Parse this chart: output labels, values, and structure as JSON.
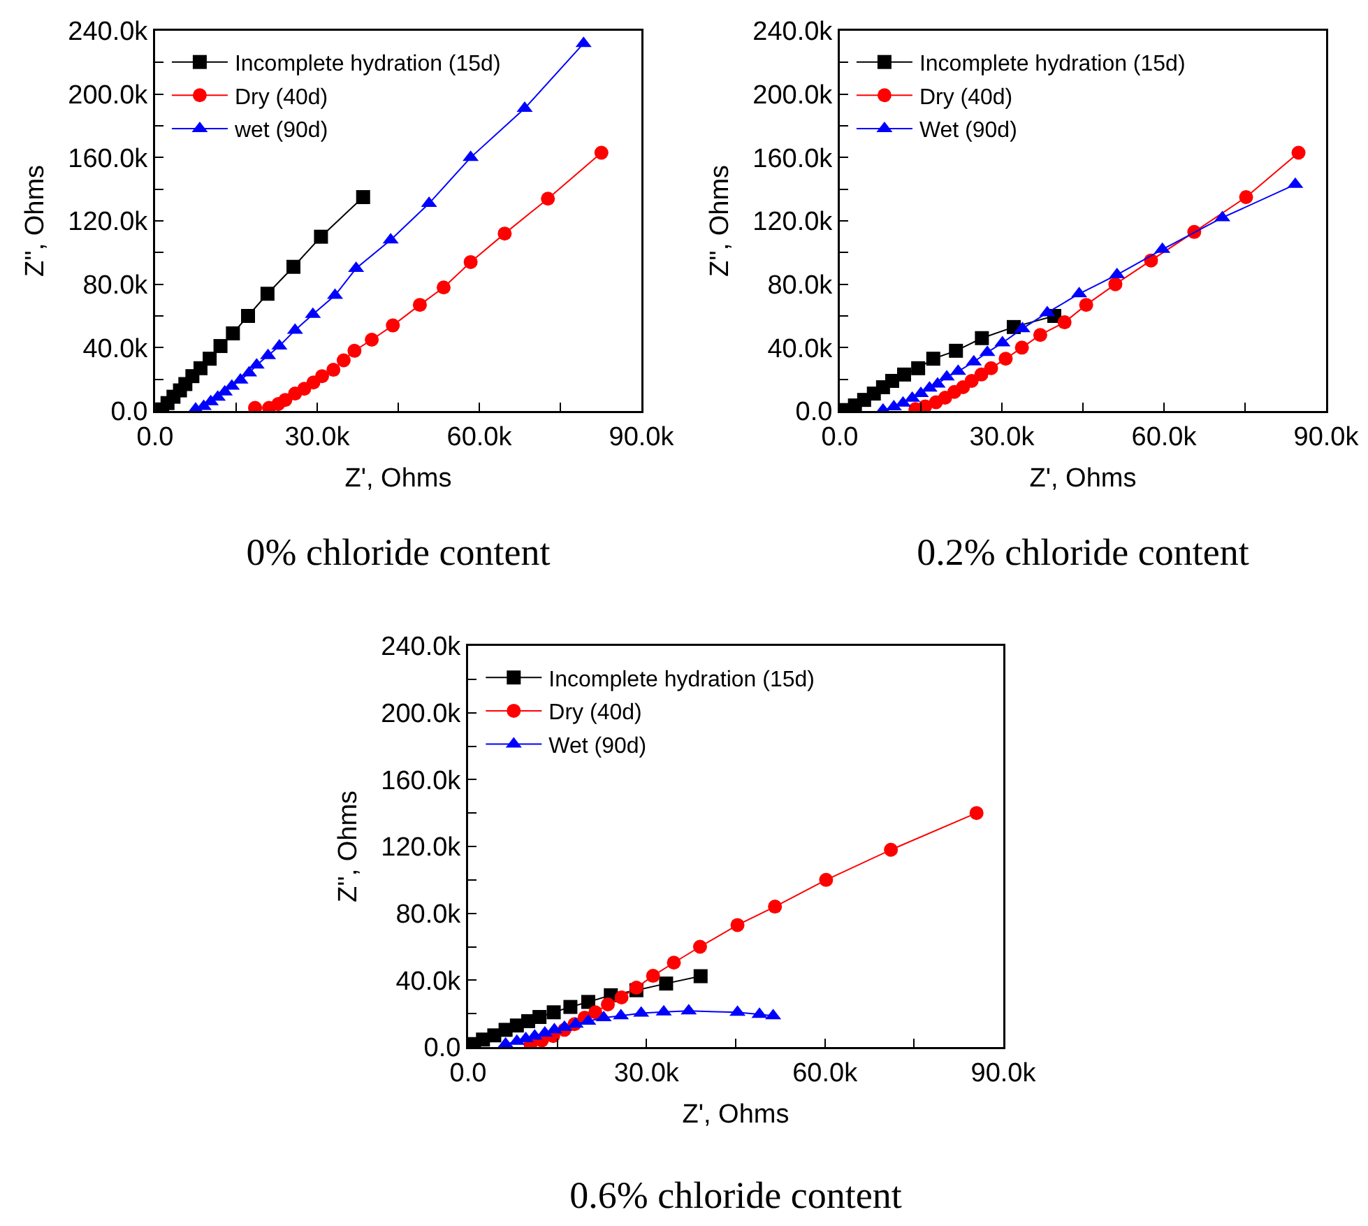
{
  "chart_data": [
    {
      "type": "line",
      "title": "0% chloride content",
      "xlabel": "Z', Ohms",
      "ylabel": "Z'', Ohms",
      "xlim": [
        0,
        90000
      ],
      "ylim": [
        0,
        240000
      ],
      "xticks": [
        {
          "value": 0,
          "label": "0.0"
        },
        {
          "value": 15000,
          "label": null
        },
        {
          "value": 30000,
          "label": "30.0k"
        },
        {
          "value": 45000,
          "label": null
        },
        {
          "value": 60000,
          "label": "60.0k"
        },
        {
          "value": 75000,
          "label": null
        },
        {
          "value": 90000,
          "label": "90.0k"
        }
      ],
      "yticks": [
        {
          "value": 0,
          "label": "0.0"
        },
        {
          "value": 20000,
          "label": null
        },
        {
          "value": 40000,
          "label": "40.0k"
        },
        {
          "value": 60000,
          "label": null
        },
        {
          "value": 80000,
          "label": "80.0k"
        },
        {
          "value": 100000,
          "label": null
        },
        {
          "value": 120000,
          "label": "120.0k"
        },
        {
          "value": 140000,
          "label": null
        },
        {
          "value": 160000,
          "label": "160.0k"
        },
        {
          "value": 180000,
          "label": null
        },
        {
          "value": 200000,
          "label": "200.0k"
        },
        {
          "value": 220000,
          "label": null
        },
        {
          "value": 240000,
          "label": "240.0k"
        }
      ],
      "grid": false,
      "legend": "top left",
      "series": [
        {
          "name": "Incomplete hydration (15d)",
          "color": "#000000",
          "marker": "square",
          "x": [
            1300,
            2300,
            3400,
            4600,
            5600,
            6900,
            8400,
            10100,
            12100,
            14400,
            17200,
            20800,
            25600,
            30700,
            38500
          ],
          "values": [
            1000,
            5000,
            9000,
            13000,
            17000,
            22000,
            27000,
            33000,
            41000,
            49000,
            60000,
            74000,
            91000,
            110000,
            135000
          ]
        },
        {
          "name": "Dry (40d)",
          "color": "#ff0000",
          "marker": "circle",
          "x": [
            18500,
            21100,
            22800,
            24100,
            25900,
            27600,
            29300,
            30900,
            33000,
            34900,
            36900,
            40100,
            44000,
            49000,
            53400,
            58400,
            64700,
            72700,
            82600
          ],
          "values": [
            2000,
            2000,
            4400,
            7000,
            11000,
            14000,
            18000,
            22000,
            26000,
            32000,
            38000,
            45000,
            54000,
            67000,
            78000,
            94000,
            112000,
            134000,
            163000
          ]
        },
        {
          "name": "wet (90d)",
          "color": "#0000ff",
          "marker": "triangle",
          "x": [
            7500,
            9000,
            10300,
            11600,
            12900,
            14200,
            15800,
            17400,
            18800,
            20900,
            23000,
            25900,
            29200,
            33300,
            37200,
            43600,
            50700,
            58400,
            68400,
            79300
          ],
          "values": [
            1200,
            2900,
            5800,
            8700,
            12000,
            15700,
            19500,
            24000,
            29000,
            35000,
            41000,
            51000,
            61000,
            73000,
            90000,
            108000,
            131000,
            160000,
            191000,
            232000
          ]
        }
      ]
    },
    {
      "type": "line",
      "title": "0.2% chloride content",
      "xlabel": "Z', Ohms",
      "ylabel": "Z'', Ohms",
      "xlim": [
        0,
        90000
      ],
      "ylim": [
        0,
        240000
      ],
      "xticks": [
        {
          "value": 0,
          "label": "0.0"
        },
        {
          "value": 15000,
          "label": null
        },
        {
          "value": 30000,
          "label": "30.0k"
        },
        {
          "value": 45000,
          "label": null
        },
        {
          "value": 60000,
          "label": "60.0k"
        },
        {
          "value": 75000,
          "label": null
        },
        {
          "value": 90000,
          "label": "90.0k"
        }
      ],
      "yticks": [
        {
          "value": 0,
          "label": "0.0"
        },
        {
          "value": 20000,
          "label": null
        },
        {
          "value": 40000,
          "label": "40.0k"
        },
        {
          "value": 60000,
          "label": null
        },
        {
          "value": 80000,
          "label": "80.0k"
        },
        {
          "value": 100000,
          "label": null
        },
        {
          "value": 120000,
          "label": "120.0k"
        },
        {
          "value": 140000,
          "label": null
        },
        {
          "value": 160000,
          "label": "160.0k"
        },
        {
          "value": 180000,
          "label": null
        },
        {
          "value": 200000,
          "label": "200.0k"
        },
        {
          "value": 220000,
          "label": null
        },
        {
          "value": 240000,
          "label": "240.0k"
        }
      ],
      "grid": false,
      "legend": "top left",
      "series": [
        {
          "name": "Incomplete hydration (15d)",
          "color": "#000000",
          "marker": "square",
          "x": [
            1100,
            2800,
            4500,
            6300,
            8000,
            9700,
            11900,
            14500,
            17300,
            21500,
            26300,
            32200,
            39700
          ],
          "values": [
            600,
            3500,
            7000,
            11000,
            15000,
            19000,
            23000,
            27000,
            33000,
            38000,
            46000,
            53000,
            60000
          ]
        },
        {
          "name": "Dry (40d)",
          "color": "#ff0000",
          "marker": "circle",
          "x": [
            14000,
            15800,
            17800,
            19500,
            21200,
            22800,
            24400,
            26200,
            28000,
            30700,
            33700,
            37100,
            41600,
            45600,
            51000,
            57600,
            65600,
            75200,
            84900
          ],
          "values": [
            1200,
            2900,
            5500,
            8400,
            12000,
            15000,
            19000,
            23000,
            27000,
            33000,
            40000,
            48000,
            56000,
            67000,
            80000,
            95000,
            113000,
            135000,
            163000
          ]
        },
        {
          "name": "Wet (90d)",
          "color": "#0000ff",
          "marker": "triangle",
          "x": [
            8000,
            10000,
            11700,
            13400,
            15000,
            16600,
            18100,
            19800,
            21900,
            24800,
            27300,
            30100,
            33800,
            38400,
            44300,
            51300,
            59700,
            70800,
            84300
          ],
          "values": [
            600,
            2600,
            5000,
            8000,
            11000,
            14500,
            17000,
            21500,
            25000,
            31000,
            37000,
            43000,
            52000,
            62000,
            74000,
            86000,
            102000,
            122000,
            143000
          ]
        }
      ]
    },
    {
      "type": "line",
      "title": "0.6% chloride content",
      "xlabel": "Z', Ohms",
      "ylabel": "Z'', Ohms",
      "xlim": [
        0,
        90000
      ],
      "ylim": [
        0,
        240000
      ],
      "xticks": [
        {
          "value": 0,
          "label": "0.0"
        },
        {
          "value": 15000,
          "label": null
        },
        {
          "value": 30000,
          "label": "30.0k"
        },
        {
          "value": 45000,
          "label": null
        },
        {
          "value": 60000,
          "label": "60.0k"
        },
        {
          "value": 75000,
          "label": null
        },
        {
          "value": 90000,
          "label": "90.0k"
        }
      ],
      "yticks": [
        {
          "value": 0,
          "label": "0.0"
        },
        {
          "value": 20000,
          "label": null
        },
        {
          "value": 40000,
          "label": "40.0k"
        },
        {
          "value": 60000,
          "label": null
        },
        {
          "value": 80000,
          "label": "80.0k"
        },
        {
          "value": 100000,
          "label": null
        },
        {
          "value": 120000,
          "label": "120.0k"
        },
        {
          "value": 140000,
          "label": null
        },
        {
          "value": 160000,
          "label": "160.0k"
        },
        {
          "value": 180000,
          "label": null
        },
        {
          "value": 200000,
          "label": "200.0k"
        },
        {
          "value": 220000,
          "label": null
        },
        {
          "value": 240000,
          "label": "240.0k"
        }
      ],
      "grid": false,
      "legend": "top left",
      "series": [
        {
          "name": "Incomplete hydration (15d)",
          "color": "#000000",
          "marker": "square",
          "x": [
            1000,
            2500,
            4400,
            6300,
            8200,
            10100,
            12000,
            14400,
            17200,
            20200,
            24000,
            28300,
            33300,
            39100
          ],
          "values": [
            1800,
            4500,
            7000,
            10300,
            12900,
            15500,
            18000,
            20800,
            24000,
            27000,
            31000,
            34000,
            38000,
            42400
          ]
        },
        {
          "name": "Dry (40d)",
          "color": "#ff0000",
          "marker": "circle",
          "x": [
            10500,
            12400,
            14300,
            16200,
            17900,
            19600,
            21400,
            23500,
            25800,
            28300,
            31100,
            34600,
            39000,
            45300,
            51600,
            60200,
            71100,
            85500
          ],
          "values": [
            1800,
            4000,
            6600,
            10300,
            13700,
            17600,
            20800,
            25500,
            29700,
            35500,
            42600,
            50500,
            60000,
            73000,
            84000,
            100000,
            118000,
            140000
          ]
        },
        {
          "name": "Wet (90d)",
          "color": "#0000ff",
          "marker": "triangle",
          "x": [
            6300,
            8200,
            9700,
            11200,
            12900,
            14500,
            16200,
            18100,
            20200,
            22800,
            25700,
            29100,
            32900,
            37100,
            45300,
            49000,
            51300
          ],
          "values": [
            1800,
            3400,
            5000,
            6600,
            8400,
            10300,
            11800,
            13700,
            15500,
            17600,
            18700,
            20300,
            21000,
            21600,
            20800,
            19500,
            18700
          ]
        }
      ]
    }
  ]
}
